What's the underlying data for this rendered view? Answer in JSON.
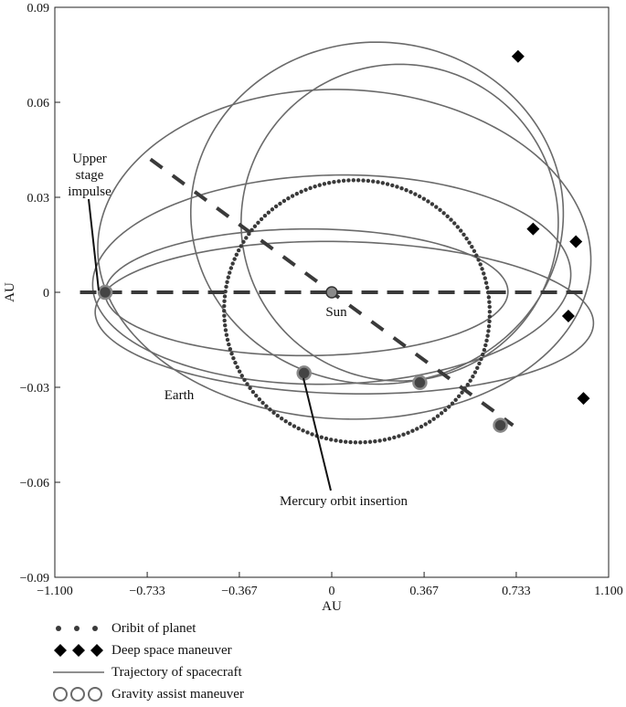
{
  "chart_data": {
    "type": "line",
    "xlabel": "AU",
    "ylabel": "AU",
    "xlim": [
      -1.1,
      1.1
    ],
    "ylim": [
      -0.09,
      0.09
    ],
    "x_ticks": [
      "−1.100",
      "−0.733",
      "−0.367",
      "0",
      "0.367",
      "0.733",
      "1.100"
    ],
    "x_tick_values": [
      -1.1,
      -0.733,
      -0.367,
      0,
      0.367,
      0.733,
      1.1
    ],
    "y_ticks": [
      "0.09",
      "0.06",
      "0.03",
      "0",
      "−0.03",
      "−0.06",
      "−0.09"
    ],
    "y_tick_values": [
      0.09,
      0.06,
      0.03,
      0,
      -0.03,
      -0.06,
      -0.09
    ],
    "grid": false,
    "sun": {
      "label": "Sun",
      "x": 0.0,
      "y": 0.0
    },
    "annotations": [
      {
        "text": "Upper stage impulse",
        "lines": [
          "Upper",
          "stage",
          "impulse"
        ]
      },
      {
        "text": "Mercury orbit insertion"
      },
      {
        "text": "Earth"
      }
    ],
    "planet_orbits": [
      {
        "name": "mercury-orbit",
        "style": "dotted",
        "cx": 0.1,
        "cy": -0.006,
        "rx": 0.52,
        "ry": 0.042,
        "angle_deg": 70
      },
      {
        "name": "orbit-line-axis",
        "style": "dotted-line",
        "x_start": -1.0,
        "x_end": 1.0,
        "y": 0.0
      },
      {
        "name": "venus-orbit-line",
        "style": "dashed-line",
        "x_start": -0.72,
        "y_start": 0.042,
        "x_end": 0.72,
        "y_end": -0.042
      }
    ],
    "trajectories": [
      {
        "cx": -0.1,
        "cy": 0.0,
        "rx": 0.8,
        "ry": 0.02,
        "angle_deg": 0.2
      },
      {
        "cx": 0.0,
        "cy": 0.004,
        "rx": 0.95,
        "ry": 0.033,
        "angle_deg": 1.5
      },
      {
        "cx": 0.05,
        "cy": -0.008,
        "rx": 0.99,
        "ry": 0.024,
        "angle_deg": -1.4
      },
      {
        "cx": 0.05,
        "cy": 0.012,
        "rx": 0.98,
        "ry": 0.052,
        "angle_deg": -2.5
      },
      {
        "cx": 0.18,
        "cy": 0.025,
        "rx": 0.74,
        "ry": 0.054,
        "angle_deg": -1.0
      },
      {
        "cx": 0.27,
        "cy": 0.022,
        "rx": 0.63,
        "ry": 0.05,
        "angle_deg": -1.5
      }
    ],
    "deep_space_maneuvers": [
      {
        "x": 0.74,
        "y": 0.0745
      },
      {
        "x": 0.8,
        "y": 0.02
      },
      {
        "x": 0.97,
        "y": 0.016
      },
      {
        "x": 0.94,
        "y": -0.0075
      },
      {
        "x": 1.0,
        "y": -0.0335
      }
    ],
    "gravity_assists": [
      {
        "x": -0.9,
        "y": 0.0
      },
      {
        "x": -0.11,
        "y": -0.0255
      },
      {
        "x": 0.35,
        "y": -0.0285
      },
      {
        "x": 0.67,
        "y": -0.042
      }
    ],
    "legend": [
      {
        "label": "Oribit of planet",
        "kind": "dots"
      },
      {
        "label": "Deep space maneuver",
        "kind": "diamonds"
      },
      {
        "label": "Trajectory of spacecraft",
        "kind": "line"
      },
      {
        "label": "Gravity assist maneuver",
        "kind": "circles"
      }
    ]
  },
  "colors": {
    "trajectory": "#6a6a6a",
    "orbit": "#3a3a3a",
    "axis": "#222222",
    "sun": "#8a8a8a"
  }
}
